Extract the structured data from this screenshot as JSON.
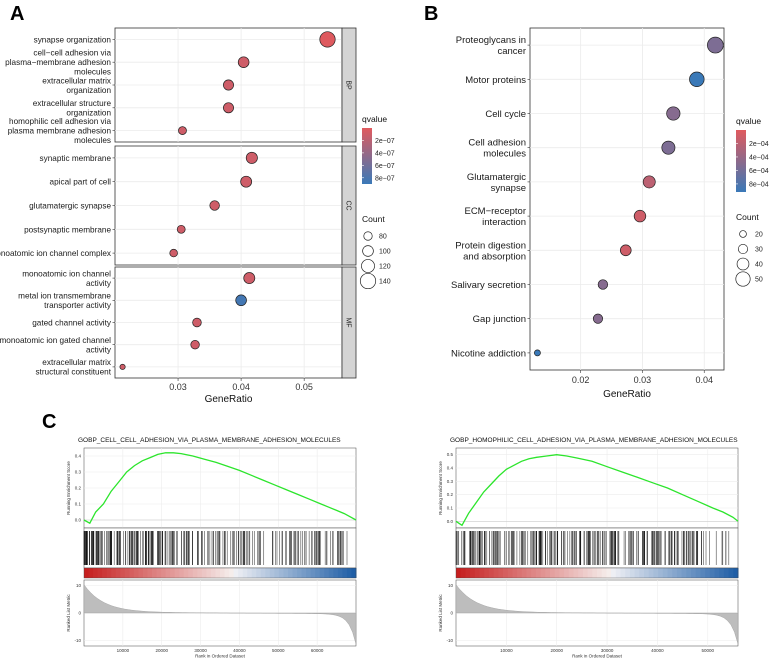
{
  "panels": {
    "a_label": "A",
    "b_label": "B",
    "c_label": "C"
  },
  "chart_data": [
    {
      "type": "scatter",
      "panel": "A",
      "xlabel": "GeneRatio",
      "xlim": [
        0.02,
        0.056
      ],
      "xticks": [
        0.03,
        0.04,
        0.05
      ],
      "facets": [
        {
          "name": "BP",
          "terms": [
            {
              "label": [
                "synapse organization"
              ],
              "x": 0.0537,
              "count": 140,
              "qvalue": 1e-08
            },
            {
              "label": [
                "cell−cell adhesion via",
                "plasma−membrane adhesion",
                "molecules"
              ],
              "x": 0.0404,
              "count": 100,
              "qvalue": 1e-07
            },
            {
              "label": [
                "extracellular matrix",
                "organization"
              ],
              "x": 0.038,
              "count": 95,
              "qvalue": 1e-07
            },
            {
              "label": [
                "extracellular structure",
                "organization"
              ],
              "x": 0.038,
              "count": 95,
              "qvalue": 1e-07
            },
            {
              "label": [
                "homophilic cell adhesion via",
                "plasma membrane adhesion",
                "molecules"
              ],
              "x": 0.0307,
              "count": 76,
              "qvalue": 1e-07
            }
          ]
        },
        {
          "name": "CC",
          "terms": [
            {
              "label": [
                "synaptic membrane"
              ],
              "x": 0.0417,
              "count": 104,
              "qvalue": 1e-07
            },
            {
              "label": [
                "apical part of cell"
              ],
              "x": 0.0408,
              "count": 102,
              "qvalue": 1e-07
            },
            {
              "label": [
                "glutamatergic synapse"
              ],
              "x": 0.0358,
              "count": 90,
              "qvalue": 1e-07
            },
            {
              "label": [
                "postsynaptic membrane"
              ],
              "x": 0.0305,
              "count": 76,
              "qvalue": 1e-07
            },
            {
              "label": [
                "monoatomic ion channel complex"
              ],
              "x": 0.0293,
              "count": 73,
              "qvalue": 1e-07
            }
          ]
        },
        {
          "name": "MF",
          "terms": [
            {
              "label": [
                "monoatomic ion channel",
                "activity"
              ],
              "x": 0.0413,
              "count": 103,
              "qvalue": 1e-07
            },
            {
              "label": [
                "metal ion transmembrane",
                "transporter activity"
              ],
              "x": 0.04,
              "count": 100,
              "qvalue": 8.5e-07
            },
            {
              "label": [
                "gated channel activity"
              ],
              "x": 0.033,
              "count": 82,
              "qvalue": 1e-07
            },
            {
              "label": [
                "monoatomic ion gated channel",
                "activity"
              ],
              "x": 0.0327,
              "count": 81,
              "qvalue": 1e-07
            },
            {
              "label": [
                "extracellular matrix",
                "structural constituent"
              ],
              "x": 0.0212,
              "count": 53,
              "qvalue": 1e-07
            }
          ]
        }
      ],
      "legend": {
        "color_title": "qvalue",
        "color_ticks": [
          "2e−07",
          "4e−07",
          "6e−07",
          "8e−07"
        ],
        "color_tick_values": [
          2e-07,
          4e-07,
          6e-07,
          8e-07
        ],
        "color_range": [
          0,
          9e-07
        ],
        "size_title": "Count",
        "size_ticks": [
          80,
          100,
          120,
          140
        ],
        "size_range": [
          50,
          145
        ],
        "placement": "right"
      },
      "colors": {
        "low": "#e05a5e",
        "high": "#3a79b8",
        "strip": "#d4d4d4",
        "panel_bg": "#ffffff",
        "grid": "#ebebeb"
      }
    },
    {
      "type": "scatter",
      "panel": "B",
      "xlabel": "GeneRatio",
      "xlim": [
        0.0118,
        0.0432
      ],
      "xticks": [
        0.02,
        0.03,
        0.04
      ],
      "terms": [
        {
          "label": [
            "Proteoglycans in",
            "cancer"
          ],
          "x": 0.0418,
          "count": 56,
          "qvalue": 0.00055
        },
        {
          "label": [
            "Motor proteins"
          ],
          "x": 0.0388,
          "count": 51,
          "qvalue": 0.00098
        },
        {
          "label": [
            "Cell cycle"
          ],
          "x": 0.035,
          "count": 46,
          "qvalue": 0.0005
        },
        {
          "label": [
            "Cell adhesion",
            "molecules"
          ],
          "x": 0.0342,
          "count": 45,
          "qvalue": 0.00055
        },
        {
          "label": [
            "Glutamatergic",
            "synapse"
          ],
          "x": 0.0311,
          "count": 41,
          "qvalue": 0.0002
        },
        {
          "label": [
            "ECM−receptor",
            "interaction"
          ],
          "x": 0.0296,
          "count": 39,
          "qvalue": 0.0001
        },
        {
          "label": [
            "Protein digestion",
            "and absorption"
          ],
          "x": 0.0273,
          "count": 36,
          "qvalue": 0.0001
        },
        {
          "label": [
            "Salivary secretion"
          ],
          "x": 0.0236,
          "count": 31,
          "qvalue": 0.0005
        },
        {
          "label": [
            "Gap junction"
          ],
          "x": 0.0228,
          "count": 30,
          "qvalue": 0.0005
        },
        {
          "label": [
            "Nicotine addiction"
          ],
          "x": 0.013,
          "count": 17,
          "qvalue": 0.00095
        }
      ],
      "legend": {
        "color_title": "qvalue",
        "color_ticks": [
          "2e−04",
          "4e−04",
          "6e−04",
          "8e−04"
        ],
        "color_tick_values": [
          0.0002,
          0.0004,
          0.0006,
          0.0008
        ],
        "color_range": [
          0,
          0.00092
        ],
        "size_title": "Count",
        "size_ticks": [
          20,
          30,
          40,
          50
        ],
        "size_range": [
          15,
          58
        ],
        "placement": "right"
      },
      "colors": {
        "low": "#e05a5e",
        "high": "#3a79b8",
        "panel_bg": "#ffffff",
        "grid": "#ebebeb"
      }
    },
    {
      "type": "line",
      "panel": "C-left",
      "title": "GOBP_CELL_CELL_ADHESION_VIA_PLASMA_MEMBRANE_ADHESION_MOLECULES",
      "ylabel_top": "Running Enrichment Score",
      "ylabel_bottom": "Ranked List Metric",
      "xlabel": "Rank in Ordered Dataset",
      "xlim": [
        0,
        70000
      ],
      "xticks": [
        10000,
        20000,
        30000,
        40000,
        50000,
        60000
      ],
      "xtick_labels": [
        "10000",
        "20000",
        "30000",
        "40000",
        "50000",
        "60000"
      ],
      "ylim_top": [
        -0.05,
        0.45
      ],
      "yticks_top": [
        0.0,
        0.1,
        0.2,
        0.3,
        0.4
      ],
      "ytick_labels_top": [
        "0.0",
        "0.1",
        "0.2",
        "0.3",
        "0.4"
      ],
      "ylim_bottom": [
        -12,
        12
      ],
      "yticks_bottom": [
        -10,
        0,
        10
      ],
      "ytick_labels_bottom": [
        "-10",
        "0",
        "10"
      ],
      "es_x": [
        0,
        1500,
        3000,
        5000,
        7000,
        9000,
        11000,
        13000,
        15000,
        17000,
        19000,
        21000,
        23000,
        25000,
        28000,
        31000,
        34000,
        37000,
        40000,
        43000,
        46000,
        49000,
        52000,
        55000,
        58000,
        61000,
        63000,
        65000,
        67000,
        68500,
        70000
      ],
      "es_y": [
        0.0,
        -0.02,
        0.05,
        0.1,
        0.18,
        0.24,
        0.3,
        0.34,
        0.37,
        0.39,
        0.41,
        0.42,
        0.42,
        0.415,
        0.4,
        0.38,
        0.36,
        0.335,
        0.31,
        0.28,
        0.25,
        0.22,
        0.19,
        0.16,
        0.13,
        0.1,
        0.08,
        0.06,
        0.04,
        0.02,
        0.0
      ],
      "line_color": "#2ce52c"
    },
    {
      "type": "line",
      "panel": "C-right",
      "title": "GOBP_HOMOPHILIC_CELL_ADHESION_VIA_PLASMA_MEMBRANE_ADHESION_MOLECULES",
      "ylabel_top": "Running Enrichment Score",
      "ylabel_bottom": "Ranked List Metric",
      "xlabel": "Rank in Ordered Dataset",
      "xlim": [
        0,
        56000
      ],
      "xticks": [
        10000,
        20000,
        30000,
        40000,
        50000
      ],
      "xtick_labels": [
        "10000",
        "20000",
        "30000",
        "40000",
        "50000"
      ],
      "ylim_top": [
        -0.05,
        0.55
      ],
      "yticks_top": [
        0.0,
        0.1,
        0.2,
        0.3,
        0.4,
        0.5
      ],
      "ytick_labels_top": [
        "0.0",
        "0.1",
        "0.2",
        "0.3",
        "0.4",
        "0.5"
      ],
      "ylim_bottom": [
        -12,
        12
      ],
      "yticks_bottom": [
        -10,
        0,
        10
      ],
      "ytick_labels_bottom": [
        "-10",
        "0",
        "10"
      ],
      "es_x": [
        0,
        1200,
        2500,
        4000,
        5500,
        7000,
        8500,
        10000,
        11500,
        13000,
        14500,
        16000,
        18000,
        20000,
        22000,
        24000,
        27000,
        30000,
        33000,
        36000,
        39000,
        42000,
        45000,
        48000,
        51000,
        53000,
        55000,
        56000
      ],
      "es_y": [
        0.0,
        -0.03,
        0.06,
        0.14,
        0.22,
        0.28,
        0.34,
        0.39,
        0.42,
        0.45,
        0.47,
        0.48,
        0.49,
        0.5,
        0.49,
        0.475,
        0.45,
        0.41,
        0.37,
        0.33,
        0.29,
        0.25,
        0.2,
        0.15,
        0.1,
        0.07,
        0.03,
        0.0
      ],
      "line_color": "#2ce52c"
    }
  ]
}
